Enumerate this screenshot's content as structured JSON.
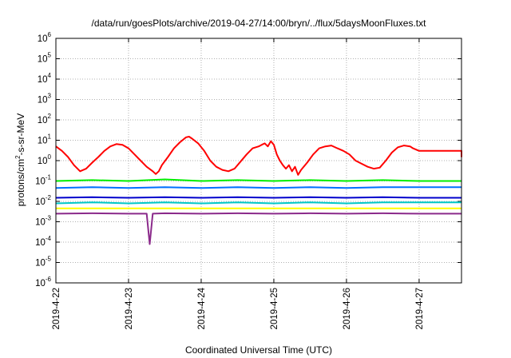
{
  "chart_data": {
    "type": "line",
    "title": "/data/run/goesPlots/archive/2019-04-27/14:00/bryn/../flux/5daysMoonFluxes.txt",
    "xlabel": "Coordinated Universal Time (UTC)",
    "ylabel": {
      "prefix": "protons/cm",
      "superscript": "2",
      "suffix": "-s-sr-MeV"
    },
    "yscale": "log",
    "ylim": [
      1e-06,
      1000000.0
    ],
    "y_ticks": [
      {
        "base": "10",
        "exp": "-6",
        "value": 1e-06
      },
      {
        "base": "10",
        "exp": "-5",
        "value": 1e-05
      },
      {
        "base": "10",
        "exp": "-4",
        "value": 0.0001
      },
      {
        "base": "10",
        "exp": "-3",
        "value": 0.001
      },
      {
        "base": "10",
        "exp": "-2",
        "value": 0.01
      },
      {
        "base": "10",
        "exp": "-1",
        "value": 0.1
      },
      {
        "base": "10",
        "exp": "0",
        "value": 1
      },
      {
        "base": "10",
        "exp": "1",
        "value": 10
      },
      {
        "base": "10",
        "exp": "2",
        "value": 100
      },
      {
        "base": "10",
        "exp": "3",
        "value": 1000
      },
      {
        "base": "10",
        "exp": "4",
        "value": 10000
      },
      {
        "base": "10",
        "exp": "5",
        "value": 100000
      },
      {
        "base": "10",
        "exp": "6",
        "value": 1000000
      }
    ],
    "xlim": [
      "2019-04-22T00:00",
      "2019-04-27T14:00"
    ],
    "x_ticks": [
      {
        "label": "2019-4-22",
        "value": "2019-04-22T00:00"
      },
      {
        "label": "2019-4-23",
        "value": "2019-04-23T00:00"
      },
      {
        "label": "2019-4-24",
        "value": "2019-04-24T00:00"
      },
      {
        "label": "2019-4-25",
        "value": "2019-04-25T00:00"
      },
      {
        "label": "2019-4-26",
        "value": "2019-04-26T00:00"
      },
      {
        "label": "2019-4-27",
        "value": "2019-04-27T00:00"
      }
    ],
    "grid": true,
    "legend": "none",
    "series": [
      {
        "color": "#ff0000",
        "points": [
          [
            "2019-04-22T00:00",
            5
          ],
          [
            "2019-04-22T02:00",
            3
          ],
          [
            "2019-04-22T04:00",
            1.5
          ],
          [
            "2019-04-22T06:00",
            0.6
          ],
          [
            "2019-04-22T08:00",
            0.3
          ],
          [
            "2019-04-22T10:00",
            0.4
          ],
          [
            "2019-04-22T12:00",
            0.8
          ],
          [
            "2019-04-22T14:00",
            1.5
          ],
          [
            "2019-04-22T16:00",
            3
          ],
          [
            "2019-04-22T18:00",
            5
          ],
          [
            "2019-04-22T20:00",
            6.5
          ],
          [
            "2019-04-22T22:00",
            6
          ],
          [
            "2019-04-23T00:00",
            4
          ],
          [
            "2019-04-23T02:00",
            2
          ],
          [
            "2019-04-23T04:00",
            1
          ],
          [
            "2019-04-23T06:00",
            0.5
          ],
          [
            "2019-04-23T08:00",
            0.3
          ],
          [
            "2019-04-23T09:00",
            0.22
          ],
          [
            "2019-04-23T10:00",
            0.3
          ],
          [
            "2019-04-23T11:00",
            0.6
          ],
          [
            "2019-04-23T13:00",
            1.5
          ],
          [
            "2019-04-23T15:00",
            4
          ],
          [
            "2019-04-23T17:00",
            8
          ],
          [
            "2019-04-23T19:00",
            14
          ],
          [
            "2019-04-23T20:00",
            15
          ],
          [
            "2019-04-23T21:00",
            12
          ],
          [
            "2019-04-23T23:00",
            7
          ],
          [
            "2019-04-24T01:00",
            3
          ],
          [
            "2019-04-24T03:00",
            1
          ],
          [
            "2019-04-24T05:00",
            0.5
          ],
          [
            "2019-04-24T07:00",
            0.35
          ],
          [
            "2019-04-24T09:00",
            0.3
          ],
          [
            "2019-04-24T11:00",
            0.4
          ],
          [
            "2019-04-24T13:00",
            0.9
          ],
          [
            "2019-04-24T15:00",
            2
          ],
          [
            "2019-04-24T17:00",
            4
          ],
          [
            "2019-04-24T19:00",
            5
          ],
          [
            "2019-04-24T20:00",
            6
          ],
          [
            "2019-04-24T21:00",
            7
          ],
          [
            "2019-04-24T22:00",
            5
          ],
          [
            "2019-04-24T23:00",
            9
          ],
          [
            "2019-04-25T00:00",
            6
          ],
          [
            "2019-04-25T01:00",
            2
          ],
          [
            "2019-04-25T02:00",
            1
          ],
          [
            "2019-04-25T03:00",
            0.6
          ],
          [
            "2019-04-25T04:00",
            0.4
          ],
          [
            "2019-04-25T05:00",
            0.6
          ],
          [
            "2019-04-25T06:00",
            0.3
          ],
          [
            "2019-04-25T07:00",
            0.5
          ],
          [
            "2019-04-25T08:00",
            0.2
          ],
          [
            "2019-04-25T09:00",
            0.35
          ],
          [
            "2019-04-25T11:00",
            0.8
          ],
          [
            "2019-04-25T13:00",
            2
          ],
          [
            "2019-04-25T15:00",
            4
          ],
          [
            "2019-04-25T17:00",
            5
          ],
          [
            "2019-04-25T19:00",
            5.5
          ],
          [
            "2019-04-25T21:00",
            4
          ],
          [
            "2019-04-25T23:00",
            3
          ],
          [
            "2019-04-26T01:00",
            2
          ],
          [
            "2019-04-26T03:00",
            1
          ],
          [
            "2019-04-26T05:00",
            0.7
          ],
          [
            "2019-04-26T07:00",
            0.5
          ],
          [
            "2019-04-26T09:00",
            0.4
          ],
          [
            "2019-04-26T11:00",
            0.45
          ],
          [
            "2019-04-26T13:00",
            1
          ],
          [
            "2019-04-26T15:00",
            2.5
          ],
          [
            "2019-04-26T17:00",
            4.5
          ],
          [
            "2019-04-26T19:00",
            5.5
          ],
          [
            "2019-04-26T21:00",
            5
          ],
          [
            "2019-04-26T22:00",
            4
          ],
          [
            "2019-04-27T00:00",
            3
          ],
          [
            "2019-04-27T14:00",
            3
          ],
          [
            "2019-04-27T14:00",
            1.5
          ]
        ]
      },
      {
        "color": "#00ee00",
        "points": [
          [
            "2019-04-22T00:00",
            0.1
          ],
          [
            "2019-04-22T12:00",
            0.11
          ],
          [
            "2019-04-23T00:00",
            0.1
          ],
          [
            "2019-04-23T12:00",
            0.12
          ],
          [
            "2019-04-24T00:00",
            0.1
          ],
          [
            "2019-04-24T12:00",
            0.11
          ],
          [
            "2019-04-25T00:00",
            0.1
          ],
          [
            "2019-04-25T12:00",
            0.11
          ],
          [
            "2019-04-26T00:00",
            0.1
          ],
          [
            "2019-04-26T12:00",
            0.11
          ],
          [
            "2019-04-27T00:00",
            0.1
          ],
          [
            "2019-04-27T14:00",
            0.1
          ]
        ]
      },
      {
        "color": "#0070ff",
        "points": [
          [
            "2019-04-22T00:00",
            0.045
          ],
          [
            "2019-04-22T12:00",
            0.05
          ],
          [
            "2019-04-23T00:00",
            0.045
          ],
          [
            "2019-04-23T12:00",
            0.05
          ],
          [
            "2019-04-24T00:00",
            0.045
          ],
          [
            "2019-04-24T12:00",
            0.05
          ],
          [
            "2019-04-25T00:00",
            0.045
          ],
          [
            "2019-04-25T12:00",
            0.05
          ],
          [
            "2019-04-26T00:00",
            0.045
          ],
          [
            "2019-04-26T12:00",
            0.05
          ],
          [
            "2019-04-27T00:00",
            0.05
          ],
          [
            "2019-04-27T14:00",
            0.05
          ]
        ]
      },
      {
        "color": "#0000cc",
        "points": [
          [
            "2019-04-22T00:00",
            0.015
          ],
          [
            "2019-04-22T12:00",
            0.016
          ],
          [
            "2019-04-23T00:00",
            0.015
          ],
          [
            "2019-04-23T12:00",
            0.016
          ],
          [
            "2019-04-24T00:00",
            0.015
          ],
          [
            "2019-04-24T12:00",
            0.016
          ],
          [
            "2019-04-25T00:00",
            0.015
          ],
          [
            "2019-04-25T12:00",
            0.016
          ],
          [
            "2019-04-26T00:00",
            0.015
          ],
          [
            "2019-04-26T12:00",
            0.016
          ],
          [
            "2019-04-27T00:00",
            0.015
          ],
          [
            "2019-04-27T14:00",
            0.015
          ]
        ]
      },
      {
        "color": "#00c8c8",
        "points": [
          [
            "2019-04-22T00:00",
            0.008
          ],
          [
            "2019-04-22T12:00",
            0.009
          ],
          [
            "2019-04-23T00:00",
            0.008
          ],
          [
            "2019-04-23T12:00",
            0.009
          ],
          [
            "2019-04-24T00:00",
            0.008
          ],
          [
            "2019-04-24T12:00",
            0.009
          ],
          [
            "2019-04-25T00:00",
            0.008
          ],
          [
            "2019-04-25T12:00",
            0.009
          ],
          [
            "2019-04-26T00:00",
            0.008
          ],
          [
            "2019-04-26T12:00",
            0.009
          ],
          [
            "2019-04-27T00:00",
            0.009
          ],
          [
            "2019-04-27T14:00",
            0.009
          ]
        ]
      },
      {
        "color": "#ffff00",
        "points": [
          [
            "2019-04-22T00:00",
            0.0045
          ],
          [
            "2019-04-23T00:00",
            0.0045
          ],
          [
            "2019-04-24T00:00",
            0.0045
          ],
          [
            "2019-04-25T00:00",
            0.0045
          ],
          [
            "2019-04-26T00:00",
            0.0045
          ],
          [
            "2019-04-27T00:00",
            0.0045
          ],
          [
            "2019-04-27T14:00",
            0.0045
          ]
        ]
      },
      {
        "color": "#8b2a8b",
        "points": [
          [
            "2019-04-22T00:00",
            0.0025
          ],
          [
            "2019-04-22T12:00",
            0.0026
          ],
          [
            "2019-04-23T00:00",
            0.0025
          ],
          [
            "2019-04-23T06:00",
            0.0025
          ],
          [
            "2019-04-23T07:00",
            8e-05
          ],
          [
            "2019-04-23T08:00",
            0.0025
          ],
          [
            "2019-04-23T12:00",
            0.0026
          ],
          [
            "2019-04-24T00:00",
            0.0025
          ],
          [
            "2019-04-24T12:00",
            0.0026
          ],
          [
            "2019-04-25T00:00",
            0.0025
          ],
          [
            "2019-04-25T12:00",
            0.0026
          ],
          [
            "2019-04-26T00:00",
            0.0025
          ],
          [
            "2019-04-26T12:00",
            0.0026
          ],
          [
            "2019-04-27T00:00",
            0.0025
          ],
          [
            "2019-04-27T14:00",
            0.0025
          ]
        ]
      }
    ]
  }
}
